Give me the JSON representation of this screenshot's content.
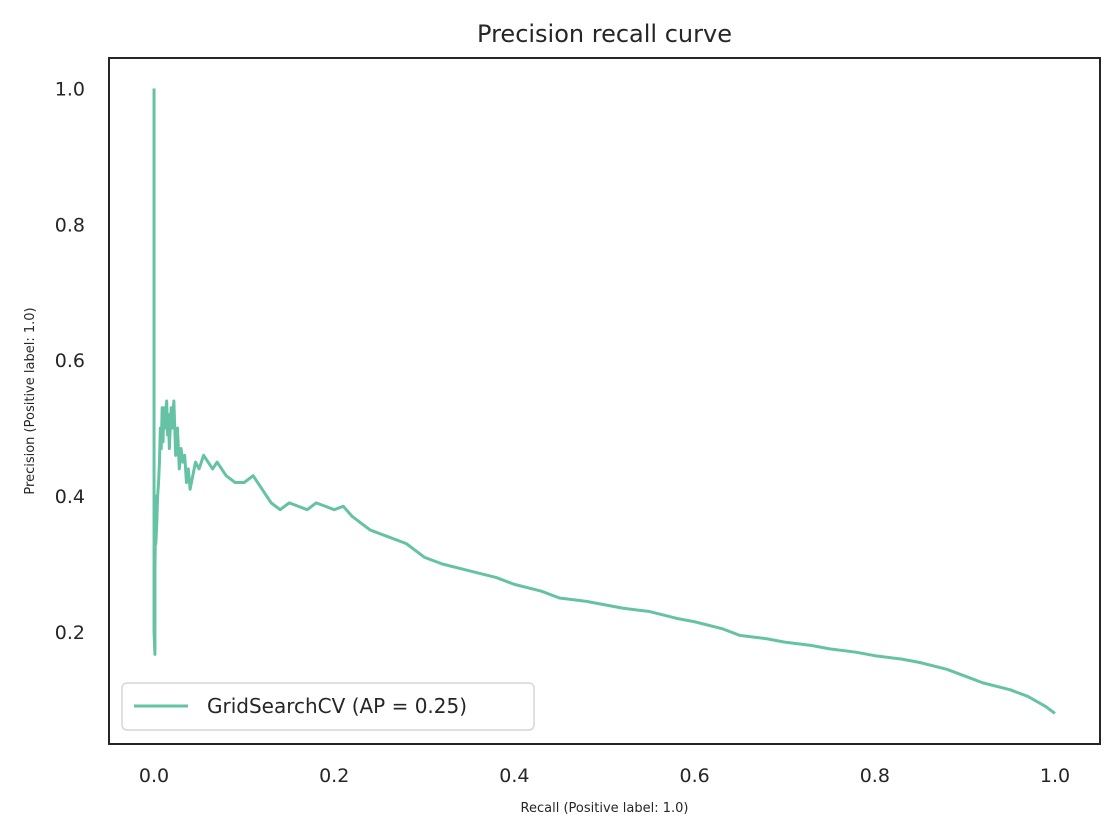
{
  "chart_data": {
    "type": "line",
    "title": "Precision recall curve",
    "xlabel": "Recall (Positive label: 1.0)",
    "ylabel": "Precision (Positive label: 1.0)",
    "xlim": [
      -0.05,
      1.05
    ],
    "ylim": [
      0.035,
      1.045
    ],
    "xticks": [
      0.0,
      0.2,
      0.4,
      0.6,
      0.8,
      1.0
    ],
    "yticks": [
      0.2,
      0.4,
      0.6,
      0.8,
      1.0
    ],
    "xtick_labels": [
      "0.0",
      "0.2",
      "0.4",
      "0.6",
      "0.8",
      "1.0"
    ],
    "ytick_labels": [
      "0.2",
      "0.4",
      "0.6",
      "0.8",
      "1.0"
    ],
    "grid": false,
    "legend_position": "lower-left",
    "line_color": "#66c2a5",
    "series": [
      {
        "name": "GridSearchCV (AP = 0.25)",
        "x": [
          0.0,
          0.0,
          0.001,
          0.001,
          0.002,
          0.002,
          0.003,
          0.004,
          0.005,
          0.006,
          0.007,
          0.008,
          0.009,
          0.01,
          0.011,
          0.012,
          0.014,
          0.015,
          0.016,
          0.017,
          0.019,
          0.02,
          0.022,
          0.024,
          0.026,
          0.028,
          0.03,
          0.032,
          0.034,
          0.036,
          0.038,
          0.04,
          0.043,
          0.046,
          0.05,
          0.055,
          0.06,
          0.065,
          0.07,
          0.08,
          0.09,
          0.1,
          0.11,
          0.12,
          0.13,
          0.14,
          0.15,
          0.16,
          0.17,
          0.18,
          0.19,
          0.2,
          0.21,
          0.22,
          0.23,
          0.24,
          0.25,
          0.26,
          0.28,
          0.3,
          0.32,
          0.35,
          0.38,
          0.4,
          0.43,
          0.45,
          0.48,
          0.5,
          0.52,
          0.55,
          0.58,
          0.6,
          0.63,
          0.65,
          0.68,
          0.7,
          0.73,
          0.75,
          0.78,
          0.8,
          0.83,
          0.85,
          0.88,
          0.9,
          0.92,
          0.95,
          0.97,
          0.99,
          1.0
        ],
        "y": [
          1.0,
          0.2,
          0.167,
          0.29,
          0.4,
          0.33,
          0.36,
          0.4,
          0.42,
          0.45,
          0.5,
          0.47,
          0.53,
          0.48,
          0.53,
          0.5,
          0.54,
          0.49,
          0.52,
          0.47,
          0.53,
          0.5,
          0.54,
          0.46,
          0.5,
          0.44,
          0.47,
          0.45,
          0.46,
          0.42,
          0.44,
          0.41,
          0.43,
          0.45,
          0.44,
          0.46,
          0.45,
          0.44,
          0.45,
          0.43,
          0.42,
          0.42,
          0.43,
          0.41,
          0.39,
          0.38,
          0.39,
          0.385,
          0.38,
          0.39,
          0.385,
          0.38,
          0.385,
          0.37,
          0.36,
          0.35,
          0.345,
          0.34,
          0.33,
          0.31,
          0.3,
          0.29,
          0.28,
          0.27,
          0.26,
          0.25,
          0.245,
          0.24,
          0.235,
          0.23,
          0.22,
          0.215,
          0.205,
          0.195,
          0.19,
          0.185,
          0.18,
          0.175,
          0.17,
          0.165,
          0.16,
          0.155,
          0.145,
          0.135,
          0.125,
          0.115,
          0.105,
          0.09,
          0.08
        ]
      }
    ]
  }
}
